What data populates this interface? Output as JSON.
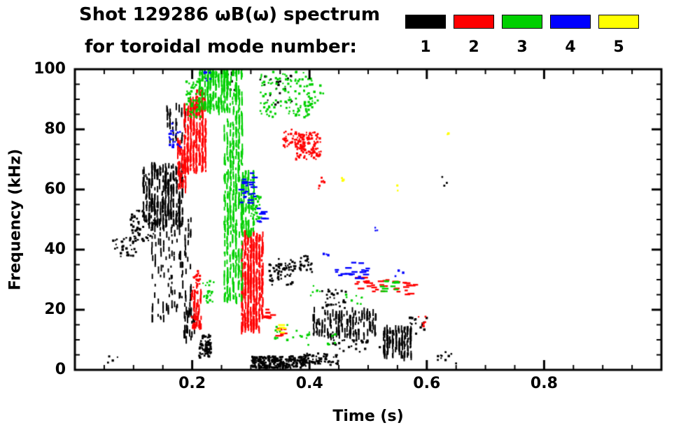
{
  "header": {
    "title_line1": "Shot 129286 ωB(ω) spectrum",
    "title_line2": "for toroidal mode number:"
  },
  "chart_data": {
    "type": "scatter",
    "title": "Shot 129286 ωB(ω) spectrum for toroidal mode number: 1 2 3 4 5",
    "xlabel": "Time (s)",
    "ylabel": "Frequency (kHz)",
    "xlim": [
      0,
      1.0
    ],
    "ylim": [
      0,
      100
    ],
    "x_ticks": [
      0.2,
      0.4,
      0.6,
      0.8
    ],
    "y_ticks": [
      0,
      20,
      40,
      60,
      80,
      100
    ],
    "x_minor_step": 0.05,
    "y_minor_step": 5,
    "grid": false,
    "legend_position": "top-right",
    "series": [
      {
        "label": "1",
        "mode_number": 1,
        "color": "#000000",
        "clusters": [
          {
            "t": [
              0.065,
              0.105
            ],
            "f": [
              37,
              44
            ],
            "n": 35,
            "style": "dot"
          },
          {
            "t": [
              0.055,
              0.075
            ],
            "f": [
              2,
              5
            ],
            "n": 4,
            "style": "dot"
          },
          {
            "t": [
              0.095,
              0.135
            ],
            "f": [
              42,
              53
            ],
            "n": 55,
            "style": "dot"
          },
          {
            "t": [
              0.115,
              0.185
            ],
            "f": [
              48,
              68
            ],
            "n": 320,
            "style": "vstreak"
          },
          {
            "t": [
              0.13,
              0.2
            ],
            "f": [
              17,
              50
            ],
            "n": 130,
            "style": "vstreak"
          },
          {
            "t": [
              0.155,
              0.19
            ],
            "f": [
              76,
              88
            ],
            "n": 35,
            "style": "vstreak"
          },
          {
            "t": [
              0.185,
              0.205
            ],
            "f": [
              10,
              22
            ],
            "n": 45,
            "style": "vstreak"
          },
          {
            "t": [
              0.212,
              0.232
            ],
            "f": [
              4,
              12
            ],
            "n": 70,
            "style": "dot"
          },
          {
            "t": [
              0.3,
              0.395
            ],
            "f": [
              0.5,
              4.5
            ],
            "n": 260,
            "style": "dot"
          },
          {
            "t": [
              0.39,
              0.45
            ],
            "f": [
              1.5,
              5.5
            ],
            "n": 70,
            "style": "dot"
          },
          {
            "t": [
              0.33,
              0.375
            ],
            "f": [
              28,
              37
            ],
            "n": 60,
            "style": "dot"
          },
          {
            "t": [
              0.375,
              0.405
            ],
            "f": [
              32,
              38
            ],
            "n": 25,
            "style": "dot"
          },
          {
            "t": [
              0.405,
              0.515
            ],
            "f": [
              11,
              20
            ],
            "n": 150,
            "style": "vstreak"
          },
          {
            "t": [
              0.42,
              0.465
            ],
            "f": [
              20,
              27
            ],
            "n": 30,
            "style": "dot"
          },
          {
            "t": [
              0.525,
              0.575
            ],
            "f": [
              4,
              14
            ],
            "n": 130,
            "style": "vstreak"
          },
          {
            "t": [
              0.57,
              0.6
            ],
            "f": [
              12,
              18
            ],
            "n": 15,
            "style": "dot"
          },
          {
            "t": [
              0.615,
              0.65
            ],
            "f": [
              2,
              6
            ],
            "n": 12,
            "style": "dot"
          },
          {
            "t": [
              0.315,
              0.37
            ],
            "f": [
              88,
              98
            ],
            "n": 22,
            "style": "dot"
          },
          {
            "t": [
              0.255,
              0.275
            ],
            "f": [
              93,
              99
            ],
            "n": 8,
            "style": "dot"
          },
          {
            "t": [
              0.625,
              0.64
            ],
            "f": [
              61,
              65
            ],
            "n": 3,
            "style": "dot"
          },
          {
            "t": [
              0.44,
              0.52
            ],
            "f": [
              6,
              10
            ],
            "n": 25,
            "style": "dot"
          }
        ]
      },
      {
        "label": "2",
        "mode_number": 2,
        "color": "#ff0000",
        "clusters": [
          {
            "t": [
              0.175,
              0.19
            ],
            "f": [
              60,
              76
            ],
            "n": 60,
            "style": "vstreak"
          },
          {
            "t": [
              0.185,
              0.225
            ],
            "f": [
              66,
              90
            ],
            "n": 280,
            "style": "vstreak"
          },
          {
            "t": [
              0.205,
              0.222
            ],
            "f": [
              86,
              93
            ],
            "n": 40,
            "style": "dot"
          },
          {
            "t": [
              0.198,
              0.216
            ],
            "f": [
              14,
              26
            ],
            "n": 55,
            "style": "vstreak"
          },
          {
            "t": [
              0.202,
              0.214
            ],
            "f": [
              26,
              33
            ],
            "n": 25,
            "style": "dot"
          },
          {
            "t": [
              0.283,
              0.322
            ],
            "f": [
              13,
              46
            ],
            "n": 420,
            "style": "vstreak"
          },
          {
            "t": [
              0.375,
              0.42
            ],
            "f": [
              70,
              79
            ],
            "n": 130,
            "style": "dot"
          },
          {
            "t": [
              0.355,
              0.375
            ],
            "f": [
              74,
              80
            ],
            "n": 30,
            "style": "dot"
          },
          {
            "t": [
              0.325,
              0.345
            ],
            "f": [
              17,
              21
            ],
            "n": 12,
            "style": "hstreak"
          },
          {
            "t": [
              0.345,
              0.36
            ],
            "f": [
              11,
              14
            ],
            "n": 8,
            "style": "hstreak"
          },
          {
            "t": [
              0.48,
              0.535
            ],
            "f": [
              26,
              31
            ],
            "n": 22,
            "style": "hstreak"
          },
          {
            "t": [
              0.545,
              0.585
            ],
            "f": [
              25,
              30
            ],
            "n": 14,
            "style": "hstreak"
          },
          {
            "t": [
              0.58,
              0.6
            ],
            "f": [
              14,
              18
            ],
            "n": 6,
            "style": "dot"
          },
          {
            "t": [
              0.415,
              0.43
            ],
            "f": [
              60,
              65
            ],
            "n": 6,
            "style": "dot"
          }
        ]
      },
      {
        "label": "3",
        "mode_number": 3,
        "color": "#00d000",
        "clusters": [
          {
            "t": [
              0.19,
              0.215
            ],
            "f": [
              84,
              97
            ],
            "n": 60,
            "style": "dot"
          },
          {
            "t": [
              0.21,
              0.262
            ],
            "f": [
              86,
              100
            ],
            "n": 220,
            "style": "vstreak"
          },
          {
            "t": [
              0.253,
              0.287
            ],
            "f": [
              23,
              100
            ],
            "n": 420,
            "style": "vstreak"
          },
          {
            "t": [
              0.285,
              0.307
            ],
            "f": [
              45,
              66
            ],
            "n": 90,
            "style": "vstreak"
          },
          {
            "t": [
              0.3,
              0.32
            ],
            "f": [
              50,
              58
            ],
            "n": 35,
            "style": "dot"
          },
          {
            "t": [
              0.315,
              0.405
            ],
            "f": [
              84,
              100
            ],
            "n": 130,
            "style": "dot"
          },
          {
            "t": [
              0.4,
              0.425
            ],
            "f": [
              88,
              96
            ],
            "n": 12,
            "style": "dot"
          },
          {
            "t": [
              0.218,
              0.237
            ],
            "f": [
              22,
              30
            ],
            "n": 22,
            "style": "dot"
          },
          {
            "t": [
              0.34,
              0.4
            ],
            "f": [
              8,
              15
            ],
            "n": 20,
            "style": "dot"
          },
          {
            "t": [
              0.43,
              0.45
            ],
            "f": [
              8,
              12
            ],
            "n": 8,
            "style": "dot"
          },
          {
            "t": [
              0.46,
              0.49
            ],
            "f": [
              21,
              26
            ],
            "n": 8,
            "style": "dot"
          },
          {
            "t": [
              0.52,
              0.55
            ],
            "f": [
              26,
              30
            ],
            "n": 10,
            "style": "hstreak"
          },
          {
            "t": [
              0.4,
              0.42
            ],
            "f": [
              24,
              28
            ],
            "n": 6,
            "style": "dot"
          }
        ]
      },
      {
        "label": "4",
        "mode_number": 4,
        "color": "#0000ff",
        "clusters": [
          {
            "t": [
              0.16,
              0.182
            ],
            "f": [
              74,
              82
            ],
            "n": 22,
            "style": "dot"
          },
          {
            "t": [
              0.218,
              0.232
            ],
            "f": [
              95,
              100
            ],
            "n": 8,
            "style": "dot"
          },
          {
            "t": [
              0.283,
              0.312
            ],
            "f": [
              55,
              66
            ],
            "n": 22,
            "style": "hstreak"
          },
          {
            "t": [
              0.312,
              0.33
            ],
            "f": [
              47,
              54
            ],
            "n": 8,
            "style": "hstreak"
          },
          {
            "t": [
              0.445,
              0.5
            ],
            "f": [
              30,
              36
            ],
            "n": 20,
            "style": "hstreak"
          },
          {
            "t": [
              0.42,
              0.435
            ],
            "f": [
              37,
              40
            ],
            "n": 4,
            "style": "dot"
          },
          {
            "t": [
              0.51,
              0.525
            ],
            "f": [
              45,
              48
            ],
            "n": 3,
            "style": "dot"
          },
          {
            "t": [
              0.545,
              0.56
            ],
            "f": [
              31,
              34
            ],
            "n": 3,
            "style": "dot"
          }
        ]
      },
      {
        "label": "5",
        "mode_number": 5,
        "color": "#ffff00",
        "clusters": [
          {
            "t": [
              0.342,
              0.358
            ],
            "f": [
              12,
              15
            ],
            "n": 5,
            "style": "hstreak"
          },
          {
            "t": [
              0.452,
              0.462
            ],
            "f": [
              61,
              64
            ],
            "n": 3,
            "style": "dot"
          },
          {
            "t": [
              0.548,
              0.558
            ],
            "f": [
              59,
              62
            ],
            "n": 2,
            "style": "dot"
          },
          {
            "t": [
              0.63,
              0.64
            ],
            "f": [
              76,
              79
            ],
            "n": 2,
            "style": "dot"
          }
        ]
      }
    ]
  }
}
